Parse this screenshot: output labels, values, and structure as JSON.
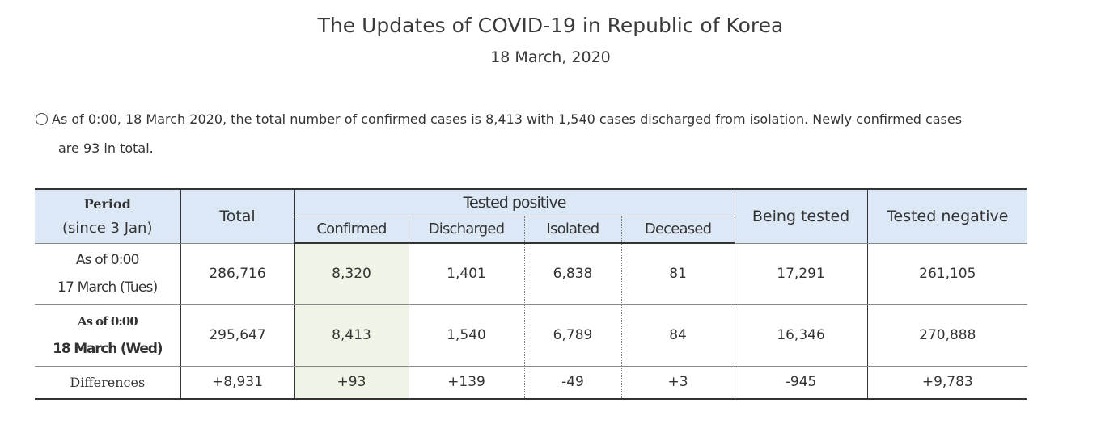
{
  "header": {
    "title": "The Updates of COVID-19 in Republic of Korea",
    "date": "18 March, 2020"
  },
  "summary": {
    "line1": "As of 0:00, 18 March 2020, the total number of confirmed cases is 8,413 with 1,540 cases discharged from isolation. Newly confirmed cases",
    "line2": "are 93 in total."
  },
  "table": {
    "headers": {
      "period_line1": "Period",
      "period_line2": "(since 3 Jan)",
      "total": "Total",
      "tested_positive": "Tested positive",
      "confirmed": "Confirmed",
      "discharged": "Discharged",
      "isolated": "Isolated",
      "deceased": "Deceased",
      "being_tested": "Being tested",
      "tested_negative": "Tested negative"
    },
    "rows": [
      {
        "period_line1": "As of 0:00",
        "period_line2": "17 March (Tues)",
        "total": "286,716",
        "confirmed": "8,320",
        "discharged": "1,401",
        "isolated": "6,838",
        "deceased": "81",
        "being_tested": "17,291",
        "tested_negative": "261,105"
      },
      {
        "period_line1": "As of 0:00",
        "period_line2": "18 March (Wed)",
        "total": "295,647",
        "confirmed": "8,413",
        "discharged": "1,540",
        "isolated": "6,789",
        "deceased": "84",
        "being_tested": "16,346",
        "tested_negative": "270,888"
      },
      {
        "period": "Differences",
        "total": "+8,931",
        "confirmed": "+93",
        "discharged": "+139",
        "isolated": "-49",
        "deceased": "+3",
        "being_tested": "-945",
        "tested_negative": "+9,783"
      }
    ]
  },
  "colors": {
    "header_bg": "#dce8f5",
    "confirmed_highlight": "#eef5e7",
    "border_dark": "#333333"
  }
}
